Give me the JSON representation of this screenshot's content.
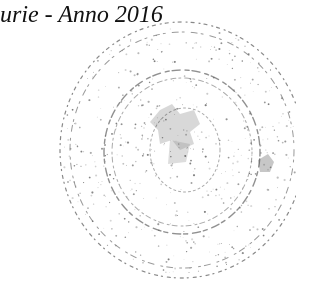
{
  "header": {
    "text": "urie - Anno 2016"
  }
}
